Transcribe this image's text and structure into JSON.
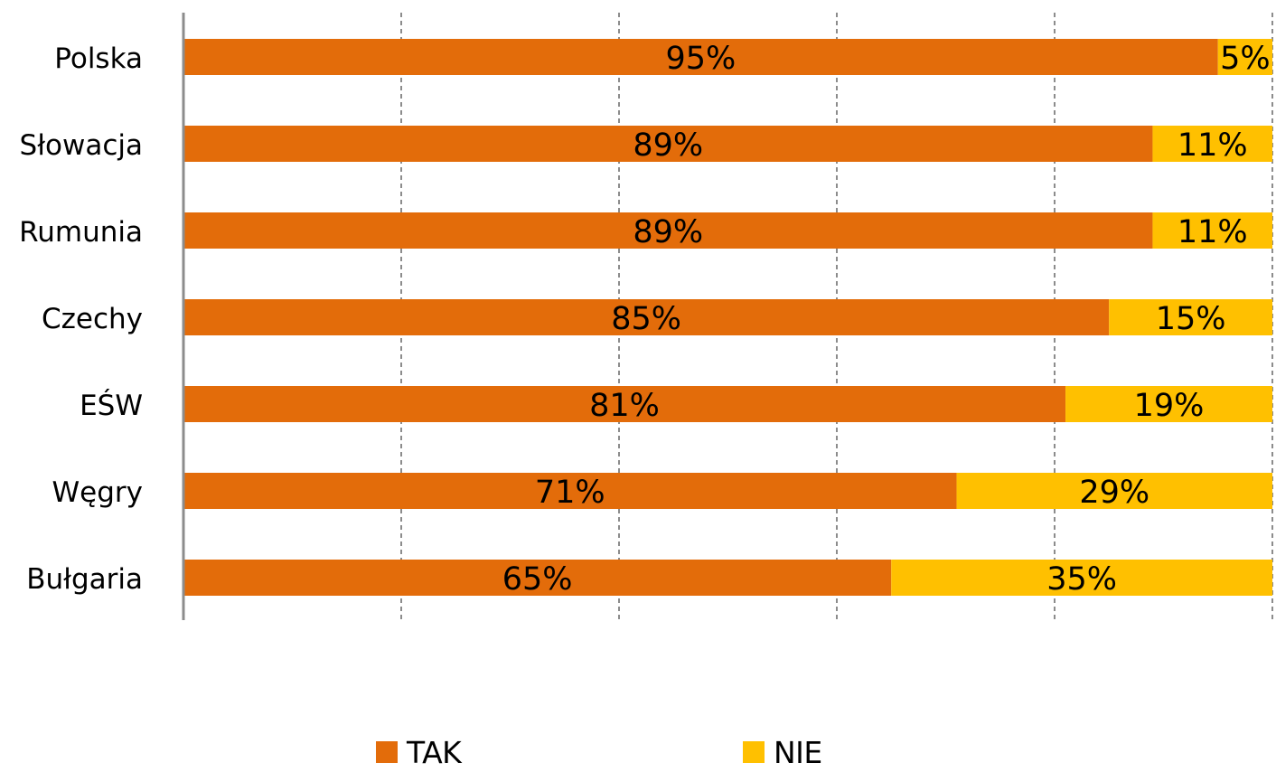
{
  "chart_data": {
    "type": "bar",
    "orientation": "horizontal",
    "stacked": true,
    "percent_stacked": true,
    "categories": [
      "Polska",
      "Słowacja",
      "Rumunia",
      "Czechy",
      "EŚW",
      "Węgry",
      "Bułgaria"
    ],
    "series": [
      {
        "name": "TAK",
        "color": "#E36C0A",
        "values": [
          95,
          89,
          89,
          85,
          81,
          71,
          65
        ],
        "labels": [
          "95%",
          "89%",
          "89%",
          "85%",
          "81%",
          "71%",
          "65%"
        ]
      },
      {
        "name": "NIE",
        "color": "#FFC000",
        "values": [
          5,
          11,
          11,
          15,
          19,
          29,
          35
        ],
        "labels": [
          "5%",
          "11%",
          "11%",
          "15%",
          "19%",
          "29%",
          "35%"
        ]
      }
    ],
    "xlim": [
      0,
      100
    ],
    "grid": true,
    "grid_style": "dashed",
    "x_tick_labels_shown": false,
    "legend_placement": "bottom"
  }
}
